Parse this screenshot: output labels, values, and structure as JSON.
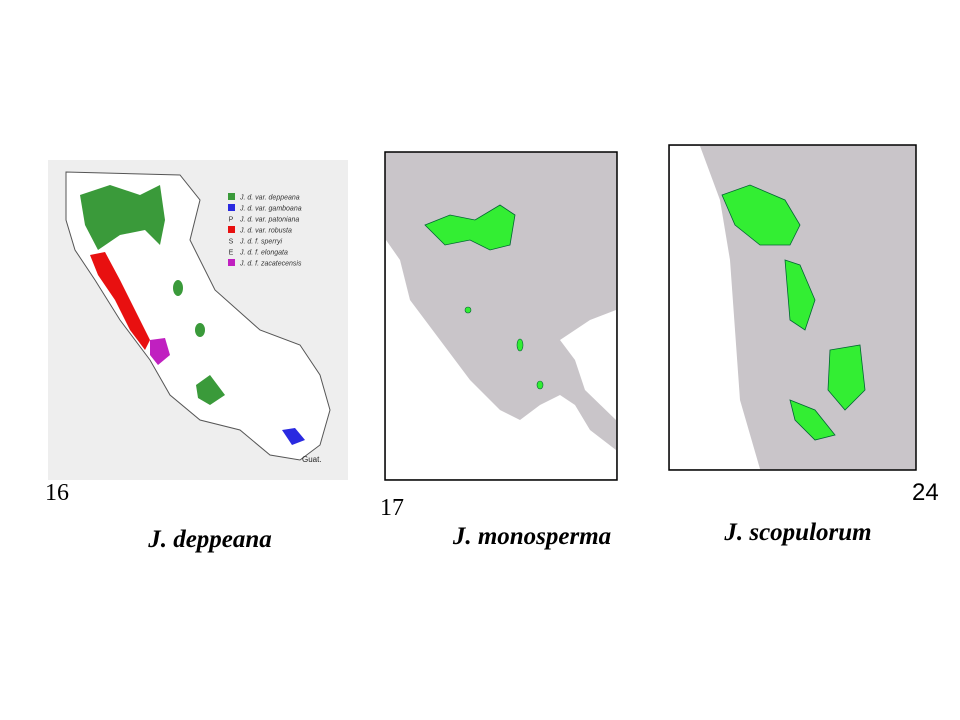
{
  "panels": [
    {
      "number": "16",
      "species": "J. deppeana",
      "legend": [
        {
          "label": "J. d. var. deppeana",
          "color": "#3a9a3a"
        },
        {
          "label": "J. d. var. gamboana",
          "color": "#2a2ae0"
        },
        {
          "label": "J. d. var. patoniana",
          "marker": "P"
        },
        {
          "label": "J. d. var. robusta",
          "color": "#e81010"
        },
        {
          "label": "J. d. f. sperryi",
          "marker": "S"
        },
        {
          "label": "J. d. f. elongata",
          "marker": "E"
        },
        {
          "label": "J. d. f. zacatecensis",
          "color": "#c020c0"
        }
      ],
      "map_labels": [
        "Guat."
      ]
    },
    {
      "number": "17",
      "species": "J. monosperma"
    },
    {
      "number": "24",
      "species": "J. scopulorum"
    }
  ]
}
